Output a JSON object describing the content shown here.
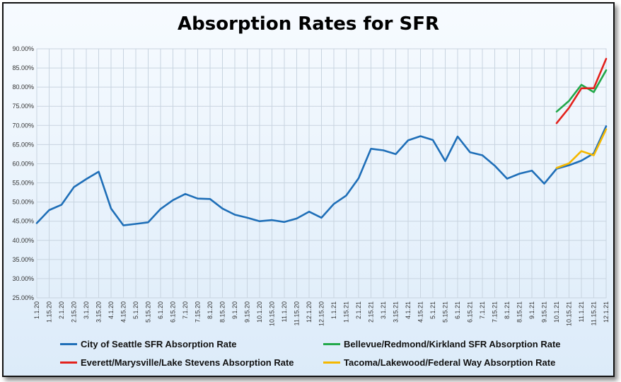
{
  "chart_data": {
    "type": "line",
    "title": "Absorption Rates for SFR",
    "xlabel": "",
    "ylabel": "",
    "ylim": [
      0.25,
      0.9
    ],
    "yticks": [
      "25.00%",
      "30.00%",
      "35.00%",
      "40.00%",
      "45.00%",
      "50.00%",
      "55.00%",
      "60.00%",
      "65.00%",
      "70.00%",
      "75.00%",
      "80.00%",
      "85.00%",
      "90.00%"
    ],
    "categories": [
      "1.1.20",
      "1.15.20",
      "2.1.20",
      "2.15.20",
      "3.1.20",
      "3.15.20",
      "4.1.20",
      "4.15.20",
      "5.1.20",
      "5.15.20",
      "6.1.20",
      "6.15.20",
      "7.1.20",
      "7.15.20",
      "8.1.20",
      "8.15.20",
      "9.1.20",
      "9.15.20",
      "10.1.20",
      "10.15.20",
      "11.1.20",
      "11.15.20",
      "12.1.20",
      "12.15.20",
      "1.1.21",
      "1.15.21",
      "2.1.21",
      "2.15.21",
      "3.1.21",
      "3.15.21",
      "4.1.21",
      "4.15.21",
      "5.1.21",
      "5.15.21",
      "6.1.21",
      "6.15.21",
      "7.1.21",
      "7.15.21",
      "8.1.21",
      "8.15.21",
      "9.1.21",
      "9.15.21",
      "10.1.21",
      "10.15.21",
      "11.1.21",
      "11.15.21",
      "12.1.21"
    ],
    "series": [
      {
        "name": "City of Seattle SFR Absorption Rate",
        "color": "#1f6fb8",
        "values": [
          0.445,
          0.479,
          0.493,
          0.539,
          0.56,
          0.579,
          0.483,
          0.439,
          0.443,
          0.447,
          0.482,
          0.505,
          0.521,
          0.509,
          0.508,
          0.483,
          0.467,
          0.459,
          0.45,
          0.453,
          0.448,
          0.457,
          0.475,
          0.459,
          0.495,
          0.517,
          0.562,
          0.639,
          0.635,
          0.625,
          0.661,
          0.672,
          0.662,
          0.607,
          0.671,
          0.63,
          0.622,
          0.595,
          0.561,
          0.574,
          0.582,
          0.548,
          0.587,
          0.596,
          0.608,
          0.627,
          0.698
        ]
      },
      {
        "name": "Bellevue/Redmond/Kirkland SFR Absorption Rate",
        "color": "#22a84a",
        "values": [
          null,
          null,
          null,
          null,
          null,
          null,
          null,
          null,
          null,
          null,
          null,
          null,
          null,
          null,
          null,
          null,
          null,
          null,
          null,
          null,
          null,
          null,
          null,
          null,
          null,
          null,
          null,
          null,
          null,
          null,
          null,
          null,
          null,
          null,
          null,
          null,
          null,
          null,
          null,
          null,
          null,
          null,
          0.736,
          0.764,
          0.806,
          0.787,
          0.844
        ]
      },
      {
        "name": "Everett/Marysville/Lake Stevens Absorption Rate",
        "color": "#e3211c",
        "values": [
          null,
          null,
          null,
          null,
          null,
          null,
          null,
          null,
          null,
          null,
          null,
          null,
          null,
          null,
          null,
          null,
          null,
          null,
          null,
          null,
          null,
          null,
          null,
          null,
          null,
          null,
          null,
          null,
          null,
          null,
          null,
          null,
          null,
          null,
          null,
          null,
          null,
          null,
          null,
          null,
          null,
          null,
          0.706,
          0.746,
          0.797,
          0.797,
          0.874
        ]
      },
      {
        "name": "Tacoma/Lakewood/Federal Way Absorption Rate",
        "color": "#f5b800",
        "values": [
          null,
          null,
          null,
          null,
          null,
          null,
          null,
          null,
          null,
          null,
          null,
          null,
          null,
          null,
          null,
          null,
          null,
          null,
          null,
          null,
          null,
          null,
          null,
          null,
          null,
          null,
          null,
          null,
          null,
          null,
          null,
          null,
          null,
          null,
          null,
          null,
          null,
          null,
          null,
          null,
          null,
          null,
          0.589,
          0.601,
          0.633,
          0.622,
          0.69
        ]
      }
    ],
    "grid": true,
    "legend": "bottom"
  }
}
